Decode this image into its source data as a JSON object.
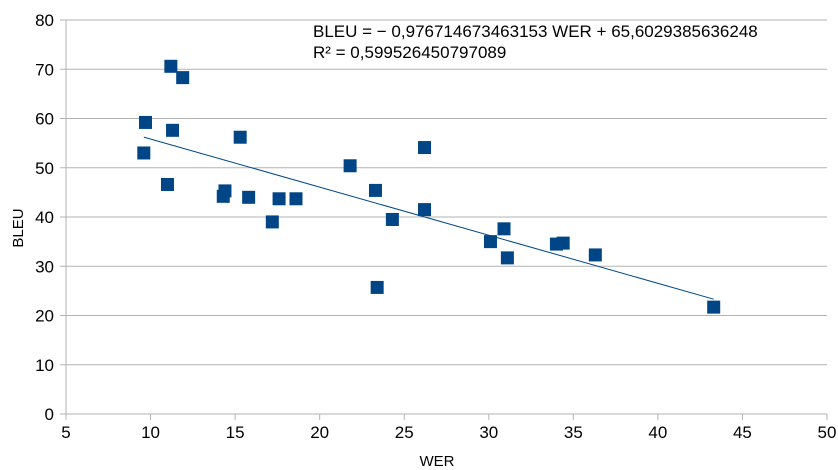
{
  "chart_data": {
    "type": "scatter",
    "xlabel": "WER",
    "ylabel": "BLEU",
    "xlim": [
      5,
      50
    ],
    "ylim": [
      0,
      80
    ],
    "x_ticks": [
      5,
      10,
      15,
      20,
      25,
      30,
      35,
      40,
      45,
      50
    ],
    "y_ticks": [
      0,
      10,
      20,
      30,
      40,
      50,
      60,
      70,
      80
    ],
    "grid": "horizontal",
    "legend": "none",
    "colors": {
      "marker": "#004586",
      "trendline": "#004586",
      "grid": "#b3b3b3",
      "axis": "#b3b3b3"
    },
    "series": [
      {
        "points": [
          [
            9.6,
            53.0
          ],
          [
            9.7,
            59.2
          ],
          [
            11.0,
            46.6
          ],
          [
            11.2,
            70.6
          ],
          [
            11.3,
            57.6
          ],
          [
            11.9,
            68.3
          ],
          [
            14.3,
            44.2
          ],
          [
            14.4,
            45.3
          ],
          [
            15.3,
            56.2
          ],
          [
            15.8,
            44.0
          ],
          [
            17.2,
            39.0
          ],
          [
            17.6,
            43.7
          ],
          [
            18.6,
            43.7
          ],
          [
            21.8,
            50.4
          ],
          [
            23.3,
            45.4
          ],
          [
            23.4,
            25.7
          ],
          [
            24.3,
            39.5
          ],
          [
            26.2,
            41.5
          ],
          [
            26.2,
            54.1
          ],
          [
            30.1,
            35.0
          ],
          [
            30.9,
            37.6
          ],
          [
            31.1,
            31.7
          ],
          [
            34.0,
            34.5
          ],
          [
            34.4,
            34.7
          ],
          [
            36.3,
            32.3
          ],
          [
            43.3,
            21.7
          ]
        ]
      }
    ],
    "trendline": {
      "slope": -0.976714673463153,
      "intercept": 65.6029385636248,
      "x_range": [
        9.6,
        43.3
      ]
    },
    "annotations": {
      "equation": "BLEU = − 0,976714673463153 WER + 65,6029385636248",
      "r_squared": "R² = 0,599526450797089"
    }
  }
}
